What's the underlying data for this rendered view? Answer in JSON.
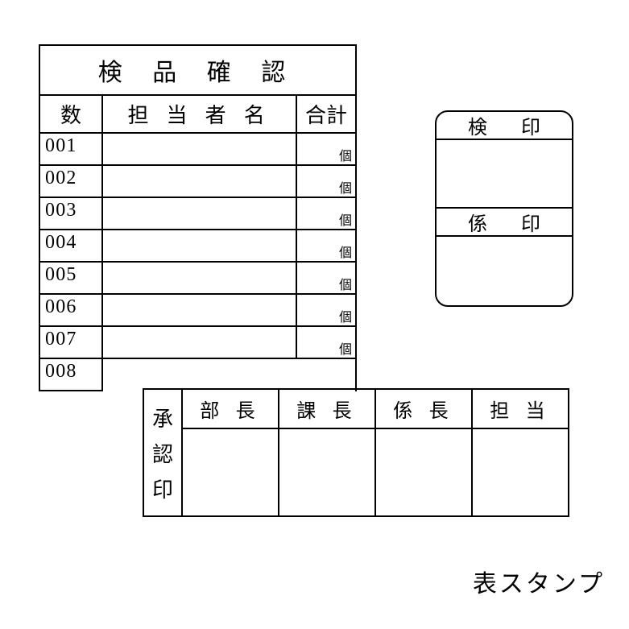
{
  "inspection": {
    "title": "検 品 確 認",
    "headers": {
      "num": "数",
      "name": "担 当 者 名",
      "total": "合計"
    },
    "unit": "個",
    "rows": [
      "001",
      "002",
      "003",
      "004",
      "005",
      "006",
      "007",
      "008"
    ]
  },
  "seal": {
    "row1_char1": "検",
    "row1_char2": "印",
    "row2_char1": "係",
    "row2_char2": "印"
  },
  "approval": {
    "label_char1": "承",
    "label_char2": "認",
    "label_char3": "印",
    "cols": [
      "部 長",
      "課 長",
      "係 長",
      "担 当"
    ]
  },
  "caption": "表スタンプ"
}
